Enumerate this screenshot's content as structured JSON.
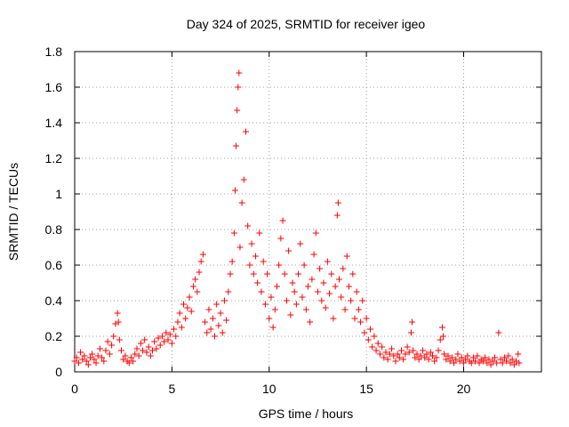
{
  "chart_data": {
    "type": "scatter",
    "title": "Day 324 of 2025, SRMTID for receiver igeo",
    "xlabel": "GPS time / hours",
    "ylabel": "SRMTID / TECUs",
    "xlim": [
      0,
      24
    ],
    "ylim": [
      0,
      1.8
    ],
    "xticks": [
      0,
      5,
      10,
      15,
      20
    ],
    "xtick_labels": [
      "0",
      "5",
      "10",
      "15",
      "20"
    ],
    "yticks": [
      0,
      0.2,
      0.4,
      0.6,
      0.8,
      1,
      1.2,
      1.4,
      1.6,
      1.8
    ],
    "ytick_labels": [
      "0",
      "0.2",
      "0.4",
      "0.6",
      "0.8",
      "1",
      "1.2",
      "1.4",
      "1.6",
      "1.8"
    ],
    "grid": true,
    "marker": "+",
    "series": [
      {
        "name": "SRMTID",
        "color": "#ff0000",
        "points": [
          [
            0.0,
            0.06
          ],
          [
            0.1,
            0.08
          ],
          [
            0.2,
            0.05
          ],
          [
            0.3,
            0.11
          ],
          [
            0.4,
            0.07
          ],
          [
            0.5,
            0.09
          ],
          [
            0.6,
            0.06
          ],
          [
            0.7,
            0.04
          ],
          [
            0.8,
            0.08
          ],
          [
            0.9,
            0.1
          ],
          [
            1.0,
            0.07
          ],
          [
            1.1,
            0.05
          ],
          [
            1.2,
            0.09
          ],
          [
            1.3,
            0.13
          ],
          [
            1.4,
            0.08
          ],
          [
            1.5,
            0.06
          ],
          [
            1.6,
            0.12
          ],
          [
            1.7,
            0.17
          ],
          [
            1.8,
            0.1
          ],
          [
            1.9,
            0.15
          ],
          [
            2.0,
            0.2
          ],
          [
            2.1,
            0.27
          ],
          [
            2.2,
            0.33
          ],
          [
            2.25,
            0.28
          ],
          [
            2.3,
            0.18
          ],
          [
            2.4,
            0.12
          ],
          [
            2.5,
            0.07
          ],
          [
            2.6,
            0.09
          ],
          [
            2.7,
            0.06
          ],
          [
            2.8,
            0.05
          ],
          [
            2.9,
            0.08
          ],
          [
            3.0,
            0.06
          ],
          [
            3.1,
            0.1
          ],
          [
            3.2,
            0.13
          ],
          [
            3.3,
            0.09
          ],
          [
            3.4,
            0.16
          ],
          [
            3.5,
            0.12
          ],
          [
            3.6,
            0.18
          ],
          [
            3.7,
            0.11
          ],
          [
            3.8,
            0.14
          ],
          [
            3.9,
            0.09
          ],
          [
            4.0,
            0.12
          ],
          [
            4.1,
            0.17
          ],
          [
            4.2,
            0.13
          ],
          [
            4.3,
            0.19
          ],
          [
            4.4,
            0.15
          ],
          [
            4.5,
            0.2
          ],
          [
            4.6,
            0.17
          ],
          [
            4.7,
            0.22
          ],
          [
            4.8,
            0.18
          ],
          [
            4.9,
            0.21
          ],
          [
            5.0,
            0.16
          ],
          [
            5.1,
            0.24
          ],
          [
            5.2,
            0.2
          ],
          [
            5.3,
            0.28
          ],
          [
            5.4,
            0.33
          ],
          [
            5.5,
            0.25
          ],
          [
            5.6,
            0.38
          ],
          [
            5.7,
            0.3
          ],
          [
            5.8,
            0.36
          ],
          [
            5.9,
            0.42
          ],
          [
            6.0,
            0.34
          ],
          [
            6.1,
            0.48
          ],
          [
            6.2,
            0.52
          ],
          [
            6.3,
            0.45
          ],
          [
            6.4,
            0.56
          ],
          [
            6.5,
            0.62
          ],
          [
            6.6,
            0.66
          ],
          [
            6.7,
            0.28
          ],
          [
            6.8,
            0.22
          ],
          [
            6.9,
            0.35
          ],
          [
            7.0,
            0.24
          ],
          [
            7.1,
            0.3
          ],
          [
            7.2,
            0.2
          ],
          [
            7.3,
            0.38
          ],
          [
            7.4,
            0.26
          ],
          [
            7.5,
            0.33
          ],
          [
            7.6,
            0.22
          ],
          [
            7.7,
            0.4
          ],
          [
            7.8,
            0.29
          ],
          [
            7.9,
            0.45
          ],
          [
            8.0,
            0.55
          ],
          [
            8.1,
            0.62
          ],
          [
            8.2,
            0.78
          ],
          [
            8.25,
            1.02
          ],
          [
            8.3,
            1.27
          ],
          [
            8.35,
            1.47
          ],
          [
            8.4,
            1.6
          ],
          [
            8.45,
            1.68
          ],
          [
            8.5,
            0.7
          ],
          [
            8.6,
            0.95
          ],
          [
            8.7,
            1.08
          ],
          [
            8.8,
            1.35
          ],
          [
            8.9,
            0.82
          ],
          [
            9.0,
            0.6
          ],
          [
            9.1,
            0.72
          ],
          [
            9.2,
            0.55
          ],
          [
            9.3,
            0.65
          ],
          [
            9.4,
            0.5
          ],
          [
            9.5,
            0.78
          ],
          [
            9.6,
            0.45
          ],
          [
            9.7,
            0.62
          ],
          [
            9.8,
            0.38
          ],
          [
            9.9,
            0.55
          ],
          [
            10.0,
            0.3
          ],
          [
            10.1,
            0.42
          ],
          [
            10.2,
            0.25
          ],
          [
            10.3,
            0.35
          ],
          [
            10.4,
            0.48
          ],
          [
            10.5,
            0.6
          ],
          [
            10.6,
            0.75
          ],
          [
            10.7,
            0.85
          ],
          [
            10.8,
            0.55
          ],
          [
            10.9,
            0.4
          ],
          [
            11.0,
            0.68
          ],
          [
            11.1,
            0.32
          ],
          [
            11.2,
            0.5
          ],
          [
            11.3,
            0.45
          ],
          [
            11.4,
            0.38
          ],
          [
            11.5,
            0.55
          ],
          [
            11.6,
            0.72
          ],
          [
            11.7,
            0.42
          ],
          [
            11.8,
            0.6
          ],
          [
            11.9,
            0.35
          ],
          [
            12.0,
            0.48
          ],
          [
            12.1,
            0.28
          ],
          [
            12.2,
            0.52
          ],
          [
            12.3,
            0.66
          ],
          [
            12.4,
            0.78
          ],
          [
            12.5,
            0.45
          ],
          [
            12.6,
            0.58
          ],
          [
            12.7,
            0.4
          ],
          [
            12.8,
            0.5
          ],
          [
            12.9,
            0.36
          ],
          [
            13.0,
            0.62
          ],
          [
            13.1,
            0.44
          ],
          [
            13.2,
            0.55
          ],
          [
            13.3,
            0.3
          ],
          [
            13.4,
            0.48
          ],
          [
            13.5,
            0.88
          ],
          [
            13.55,
            0.95
          ],
          [
            13.6,
            0.52
          ],
          [
            13.7,
            0.42
          ],
          [
            13.8,
            0.58
          ],
          [
            13.9,
            0.35
          ],
          [
            14.0,
            0.65
          ],
          [
            14.1,
            0.48
          ],
          [
            14.2,
            0.4
          ],
          [
            14.3,
            0.55
          ],
          [
            14.4,
            0.3
          ],
          [
            14.5,
            0.45
          ],
          [
            14.6,
            0.35
          ],
          [
            14.7,
            0.28
          ],
          [
            14.8,
            0.4
          ],
          [
            14.9,
            0.22
          ],
          [
            15.0,
            0.3
          ],
          [
            15.1,
            0.18
          ],
          [
            15.2,
            0.24
          ],
          [
            15.3,
            0.14
          ],
          [
            15.4,
            0.2
          ],
          [
            15.5,
            0.12
          ],
          [
            15.6,
            0.16
          ],
          [
            15.7,
            0.1
          ],
          [
            15.8,
            0.14
          ],
          [
            15.9,
            0.08
          ],
          [
            16.0,
            0.11
          ],
          [
            16.1,
            0.07
          ],
          [
            16.2,
            0.1
          ],
          [
            16.3,
            0.13
          ],
          [
            16.4,
            0.09
          ],
          [
            16.5,
            0.06
          ],
          [
            16.6,
            0.1
          ],
          [
            16.7,
            0.08
          ],
          [
            16.8,
            0.12
          ],
          [
            16.9,
            0.07
          ],
          [
            17.0,
            0.1
          ],
          [
            17.1,
            0.14
          ],
          [
            17.2,
            0.11
          ],
          [
            17.3,
            0.22
          ],
          [
            17.35,
            0.28
          ],
          [
            17.4,
            0.12
          ],
          [
            17.5,
            0.08
          ],
          [
            17.6,
            0.1
          ],
          [
            17.7,
            0.07
          ],
          [
            17.8,
            0.09
          ],
          [
            17.9,
            0.12
          ],
          [
            18.0,
            0.08
          ],
          [
            18.1,
            0.1
          ],
          [
            18.2,
            0.07
          ],
          [
            18.3,
            0.11
          ],
          [
            18.4,
            0.09
          ],
          [
            18.5,
            0.06
          ],
          [
            18.6,
            0.08
          ],
          [
            18.7,
            0.12
          ],
          [
            18.8,
            0.18
          ],
          [
            18.9,
            0.25
          ],
          [
            18.95,
            0.2
          ],
          [
            19.0,
            0.1
          ],
          [
            19.1,
            0.07
          ],
          [
            19.2,
            0.09
          ],
          [
            19.3,
            0.06
          ],
          [
            19.4,
            0.08
          ],
          [
            19.5,
            0.05
          ],
          [
            19.6,
            0.07
          ],
          [
            19.7,
            0.1
          ],
          [
            19.8,
            0.06
          ],
          [
            19.9,
            0.08
          ],
          [
            20.0,
            0.05
          ],
          [
            20.1,
            0.07
          ],
          [
            20.2,
            0.09
          ],
          [
            20.3,
            0.06
          ],
          [
            20.4,
            0.05
          ],
          [
            20.5,
            0.08
          ],
          [
            20.6,
            0.06
          ],
          [
            20.7,
            0.09
          ],
          [
            20.8,
            0.05
          ],
          [
            20.9,
            0.07
          ],
          [
            21.0,
            0.06
          ],
          [
            21.1,
            0.08
          ],
          [
            21.2,
            0.05
          ],
          [
            21.3,
            0.07
          ],
          [
            21.4,
            0.04
          ],
          [
            21.5,
            0.06
          ],
          [
            21.6,
            0.08
          ],
          [
            21.7,
            0.05
          ],
          [
            21.8,
            0.22
          ],
          [
            21.9,
            0.07
          ],
          [
            22.0,
            0.05
          ],
          [
            22.1,
            0.08
          ],
          [
            22.2,
            0.06
          ],
          [
            22.3,
            0.09
          ],
          [
            22.4,
            0.05
          ],
          [
            22.5,
            0.07
          ],
          [
            22.6,
            0.04
          ],
          [
            22.7,
            0.06
          ],
          [
            22.8,
            0.1
          ],
          [
            22.85,
            0.05
          ]
        ]
      }
    ]
  }
}
